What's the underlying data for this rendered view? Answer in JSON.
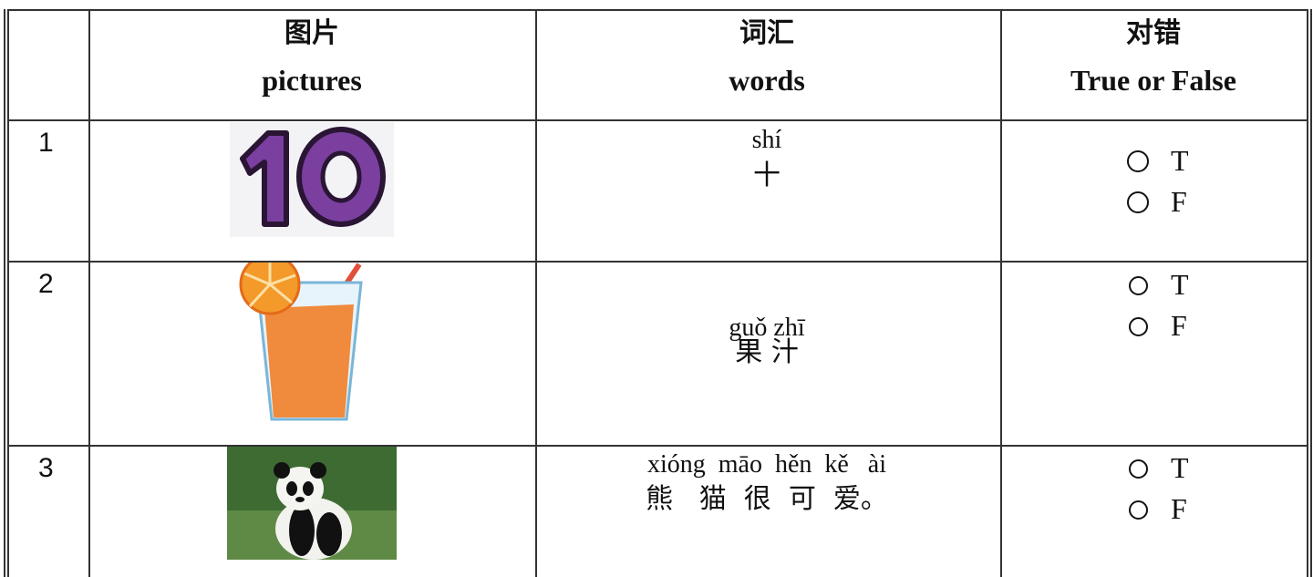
{
  "table": {
    "header": [
      {
        "zh": "图片",
        "en": "pictures"
      },
      {
        "zh": "词汇",
        "en": "words"
      },
      {
        "zh": "对错",
        "en": "True or False"
      }
    ],
    "rows": [
      {
        "number": 1,
        "pinyin": "shí",
        "hanzi": "十",
        "options": [
          "T",
          "F"
        ]
      },
      {
        "number": 2,
        "pinyin": "guǒ zhī",
        "hanzi": "果 汁",
        "options": [
          "T",
          "F"
        ]
      },
      {
        "number": 3,
        "pinyin": "xióng  māo  hěn  kě   ài",
        "hanzi": "熊   猫  很  可  爱。",
        "options": [
          "T",
          "F"
        ]
      }
    ]
  }
}
